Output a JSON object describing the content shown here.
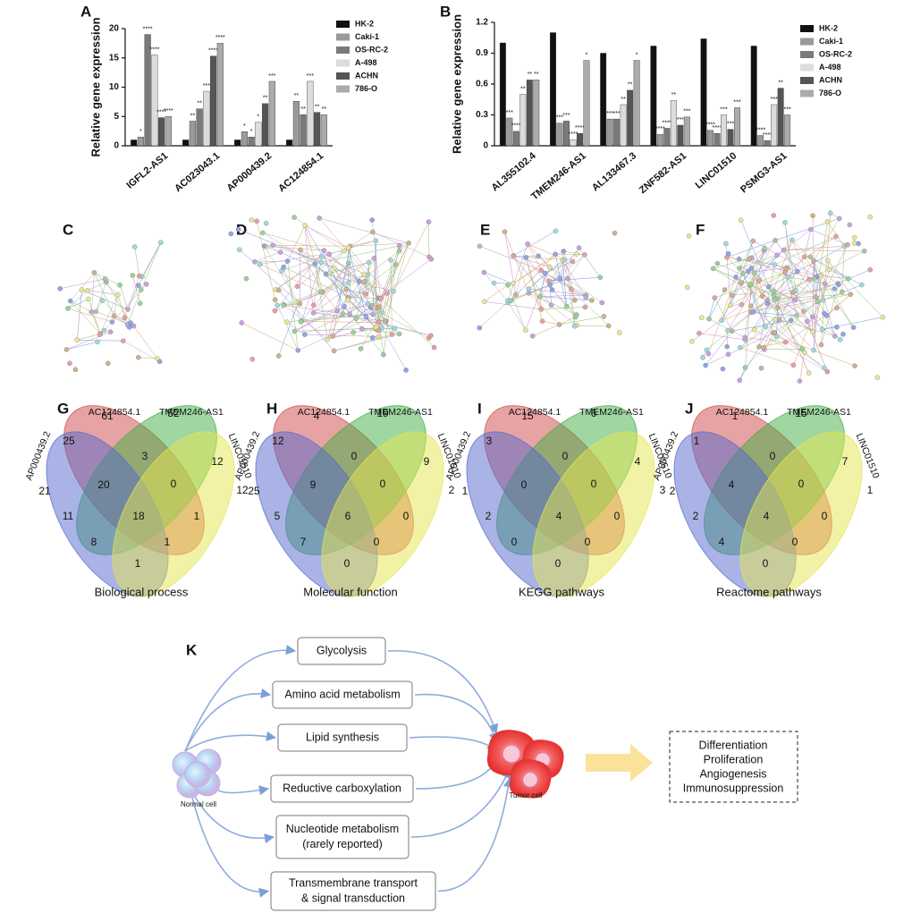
{
  "chart_data": [
    {
      "type": "bar",
      "panel_label": "A",
      "ylabel": "Relative gene expression",
      "categories": [
        "IGFL2-AS1",
        "AC023043.1",
        "AP000439.2",
        "AC124854.1"
      ],
      "ylim": [
        0,
        20
      ],
      "yticks": [
        0,
        5,
        10,
        15,
        20
      ],
      "series": [
        {
          "name": "HK-2",
          "color": "#111111",
          "values": [
            1,
            1,
            1,
            1
          ]
        },
        {
          "name": "Caki-1",
          "color": "#9a9a9a",
          "values": [
            1.5,
            4.2,
            2.4,
            7.6
          ],
          "significance": [
            "*",
            "**",
            "*",
            "**"
          ]
        },
        {
          "name": "OS-RC-2",
          "color": "#7a7a7a",
          "values": [
            19,
            6.3,
            1.5,
            5.3
          ],
          "significance": [
            "****",
            "**",
            "*",
            "**"
          ]
        },
        {
          "name": "A-498",
          "color": "#dcdcdc",
          "values": [
            15.5,
            9.3,
            4,
            11
          ],
          "significance": [
            "****",
            "***",
            "*",
            "***"
          ]
        },
        {
          "name": "ACHN",
          "color": "#555555",
          "values": [
            4.8,
            15.3,
            7.2,
            5.7
          ],
          "significance": [
            "****",
            "****",
            "**",
            "**"
          ]
        },
        {
          "name": "786-O",
          "color": "#ababab",
          "values": [
            5,
            17.5,
            11,
            5.3
          ],
          "significance": [
            "****",
            "****",
            "***",
            "**"
          ]
        }
      ]
    },
    {
      "type": "bar",
      "panel_label": "B",
      "ylabel": "Relative gene expression",
      "categories": [
        "AL355102.4",
        "TMEM246-AS1",
        "AL133467.3",
        "ZNF582-AS1",
        "LINC01510",
        "PSMG3-AS1"
      ],
      "ylim": [
        0,
        1.2
      ],
      "yticks": [
        0,
        0.3,
        0.6,
        0.9,
        1.2
      ],
      "series": [
        {
          "name": "HK-2",
          "color": "#111111",
          "values": [
            1.0,
            1.1,
            0.9,
            0.97,
            1.04,
            0.97
          ]
        },
        {
          "name": "Caki-1",
          "color": "#9a9a9a",
          "values": [
            0.27,
            0.22,
            0.26,
            0.11,
            0.15,
            0.1
          ],
          "significance": [
            "***",
            "***",
            "***",
            "****",
            "****",
            "****"
          ]
        },
        {
          "name": "OS-RC-2",
          "color": "#7a7a7a",
          "values": [
            0.14,
            0.24,
            0.26,
            0.17,
            0.12,
            0.05
          ],
          "significance": [
            "****",
            "***",
            "***",
            "****",
            "****",
            "****"
          ]
        },
        {
          "name": "A-498",
          "color": "#dcdcdc",
          "values": [
            0.5,
            0.06,
            0.4,
            0.44,
            0.3,
            0.4
          ],
          "significance": [
            "**",
            "****",
            "**",
            "**",
            "***",
            "***"
          ]
        },
        {
          "name": "ACHN",
          "color": "#555555",
          "values": [
            0.64,
            0.12,
            0.54,
            0.2,
            0.16,
            0.56
          ],
          "significance": [
            "**",
            "****",
            "**",
            "***",
            "***",
            "**"
          ]
        },
        {
          "name": "786-O",
          "color": "#ababab",
          "values": [
            0.64,
            0.83,
            0.83,
            0.28,
            0.37,
            0.3
          ],
          "significance": [
            "**",
            "*",
            "*",
            "***",
            "***",
            "***"
          ]
        }
      ]
    }
  ],
  "networks": [
    {
      "panel": "C"
    },
    {
      "panel": "D"
    },
    {
      "panel": "E"
    },
    {
      "panel": "F"
    }
  ],
  "venns": [
    {
      "panel": "G",
      "caption": "Biological process",
      "sets": [
        "AC124854.1",
        "TMEM246-AS1",
        "AP000439.2",
        "LINC01510"
      ],
      "regions": [
        61,
        52,
        25,
        3,
        12,
        21,
        20,
        0,
        12,
        11,
        18,
        1,
        8,
        1,
        1
      ]
    },
    {
      "panel": "H",
      "caption": "Molecular function",
      "sets": [
        "AC124854.1",
        "TMEM246-AS1",
        "AP000439.2",
        "LINC01510"
      ],
      "regions": [
        4,
        19,
        12,
        0,
        9,
        25,
        9,
        0,
        2,
        5,
        6,
        0,
        7,
        0,
        0
      ]
    },
    {
      "panel": "I",
      "caption": "KEGG pathways",
      "sets": [
        "AC124854.1",
        "TMEM246-AS1",
        "AP000439.2",
        "LINC01510"
      ],
      "regions": [
        15,
        6,
        3,
        0,
        4,
        1,
        0,
        0,
        3,
        2,
        4,
        0,
        0,
        0,
        0
      ]
    },
    {
      "panel": "J",
      "caption": "Reactome pathways",
      "sets": [
        "AC124854.1",
        "TMEM246-AS1",
        "AP000439.2",
        "LINC01510"
      ],
      "regions": [
        1,
        15,
        1,
        0,
        7,
        2,
        4,
        0,
        1,
        2,
        4,
        0,
        4,
        0,
        0
      ]
    }
  ],
  "pathway_diagram": {
    "panel": "K",
    "source": "Normal cell",
    "target": "Tumor cell",
    "processes": [
      [
        "Glycolysis"
      ],
      [
        "Amino acid metabolism"
      ],
      [
        "Lipid synthesis"
      ],
      [
        "Reductive carboxylation"
      ],
      [
        "Nucleotide metabolism",
        "(rarely reported)"
      ],
      [
        "Transmembrane transport",
        "& signal transduction"
      ]
    ],
    "outcomes": [
      "Differentiation",
      "Proliferation",
      "Angiogenesis",
      "Immunosuppression"
    ]
  }
}
